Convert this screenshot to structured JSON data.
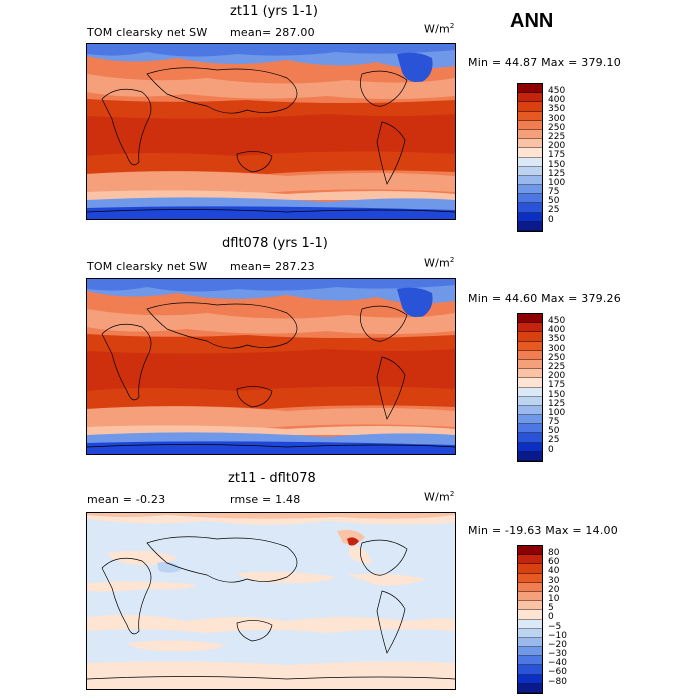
{
  "title": "ANN",
  "panels": [
    {
      "title": "zt11 (yrs 1-1)",
      "label_left": "TOM clearsky net SW",
      "label_mid": "mean= 287.00",
      "units": "W/m",
      "units_sup": "2",
      "minmax": "Min =  44.87 Max = 379.10",
      "colorbar": {
        "levels": [
          "450",
          "400",
          "350",
          "300",
          "250",
          "225",
          "200",
          "175",
          "150",
          "125",
          "100",
          "75",
          "50",
          "25",
          "0"
        ],
        "colors": [
          "#8b0000",
          "#c4230d",
          "#d9400f",
          "#e55a22",
          "#f07e52",
          "#f5a07a",
          "#fac3a6",
          "#fde4d3",
          "#dbe8f7",
          "#bcd3f1",
          "#98b8ee",
          "#6f98e9",
          "#4d78e3",
          "#2a54d8",
          "#0b2fc4",
          "#0a1a8a"
        ]
      },
      "map": {
        "colors": {
          "south": "#1e46d8",
          "subpolar": "#6f98e9",
          "mid": "#f5a07a",
          "sub": "#e55a22",
          "tropics": "#d9400f",
          "north": "#f07e52",
          "arctic": "#6f98e9"
        }
      }
    },
    {
      "title": "dflt078 (yrs 1-1)",
      "label_left": "TOM clearsky net SW",
      "label_mid": "mean= 287.23",
      "units": "W/m",
      "units_sup": "2",
      "minmax": "Min =  44.60 Max = 379.26",
      "colorbar": {
        "levels": [
          "450",
          "400",
          "350",
          "300",
          "250",
          "225",
          "200",
          "175",
          "150",
          "125",
          "100",
          "75",
          "50",
          "25",
          "0"
        ],
        "colors": [
          "#8b0000",
          "#c4230d",
          "#d9400f",
          "#e55a22",
          "#f07e52",
          "#f5a07a",
          "#fac3a6",
          "#fde4d3",
          "#dbe8f7",
          "#bcd3f1",
          "#98b8ee",
          "#6f98e9",
          "#4d78e3",
          "#2a54d8",
          "#0b2fc4",
          "#0a1a8a"
        ]
      },
      "map": {
        "colors": {
          "south": "#1e46d8",
          "subpolar": "#6f98e9",
          "mid": "#f5a07a",
          "sub": "#e55a22",
          "tropics": "#d9400f",
          "north": "#f07e52",
          "arctic": "#6f98e9"
        }
      }
    },
    {
      "title": "zt11 - dflt078",
      "label_left": "mean =   -0.23",
      "label_mid": "rmse =    1.48",
      "units": "W/m",
      "units_sup": "2",
      "minmax": "Min = -19.63 Max =  14.00",
      "colorbar": {
        "levels": [
          "80",
          "60",
          "40",
          "30",
          "20",
          "10",
          "5",
          "0",
          "−5",
          "−10",
          "−20",
          "−30",
          "−40",
          "−60",
          "−80"
        ],
        "colors": [
          "#8b0000",
          "#c4230d",
          "#d9400f",
          "#e55a22",
          "#f07e52",
          "#f5a07a",
          "#fac3a6",
          "#fde4d3",
          "#dbe8f7",
          "#bcd3f1",
          "#98b8ee",
          "#6f98e9",
          "#4d78e3",
          "#2a54d8",
          "#0b2fc4",
          "#0a1a8a"
        ]
      },
      "map": {
        "colors": {
          "base": "#dbe8f7",
          "warm": "#fde4d3",
          "warmer": "#fac3a6",
          "cool": "#bcd3f1",
          "cooler": "#98b8ee",
          "hot": "#c4230d"
        }
      }
    }
  ]
}
